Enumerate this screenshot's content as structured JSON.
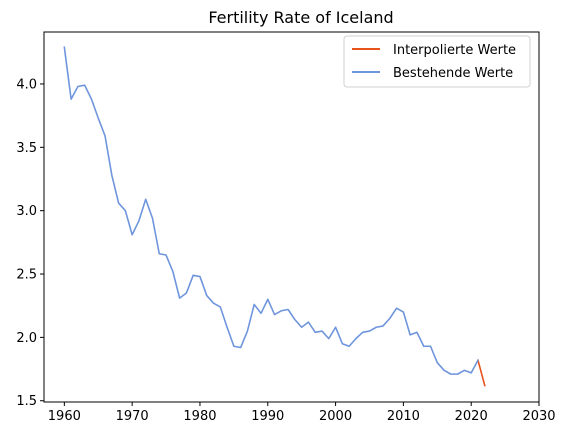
{
  "chart_data": {
    "type": "line",
    "title": "Fertility Rate of Iceland",
    "xlabel": "",
    "ylabel": "",
    "xlim": [
      1957,
      2030
    ],
    "ylim": [
      1.49,
      4.41
    ],
    "x_ticks": [
      1960,
      1970,
      1980,
      1990,
      2000,
      2010,
      2020,
      2030
    ],
    "y_ticks": [
      1.5,
      2.0,
      2.5,
      3.0,
      3.5,
      4.0
    ],
    "legend_position": "top-right",
    "grid": false,
    "series": [
      {
        "name": "Interpolierte Werte",
        "color": "#e8531c",
        "x": [
          2021,
          2022
        ],
        "y": [
          1.82,
          1.62
        ]
      },
      {
        "name": "Bestehende Werte",
        "color": "#6f95dd",
        "x": [
          1960,
          1961,
          1962,
          1963,
          1964,
          1965,
          1966,
          1967,
          1968,
          1969,
          1970,
          1971,
          1972,
          1973,
          1974,
          1975,
          1976,
          1977,
          1978,
          1979,
          1980,
          1981,
          1982,
          1983,
          1984,
          1985,
          1986,
          1987,
          1988,
          1989,
          1990,
          1991,
          1992,
          1993,
          1994,
          1995,
          1996,
          1997,
          1998,
          1999,
          2000,
          2001,
          2002,
          2003,
          2004,
          2005,
          2006,
          2007,
          2008,
          2009,
          2010,
          2011,
          2012,
          2013,
          2014,
          2015,
          2016,
          2017,
          2018,
          2019,
          2020,
          2021
        ],
        "y": [
          4.29,
          3.88,
          3.98,
          3.99,
          3.88,
          3.73,
          3.59,
          3.28,
          3.06,
          3.0,
          2.81,
          2.92,
          3.09,
          2.94,
          2.66,
          2.65,
          2.52,
          2.31,
          2.35,
          2.49,
          2.48,
          2.33,
          2.27,
          2.24,
          2.08,
          1.93,
          1.92,
          2.05,
          2.26,
          2.19,
          2.3,
          2.18,
          2.21,
          2.22,
          2.14,
          2.08,
          2.12,
          2.04,
          2.05,
          1.99,
          2.08,
          1.95,
          1.93,
          1.99,
          2.04,
          2.05,
          2.08,
          2.09,
          2.15,
          2.23,
          2.2,
          2.02,
          2.04,
          1.93,
          1.93,
          1.8,
          1.74,
          1.71,
          1.71,
          1.74,
          1.72,
          1.82
        ]
      }
    ]
  }
}
